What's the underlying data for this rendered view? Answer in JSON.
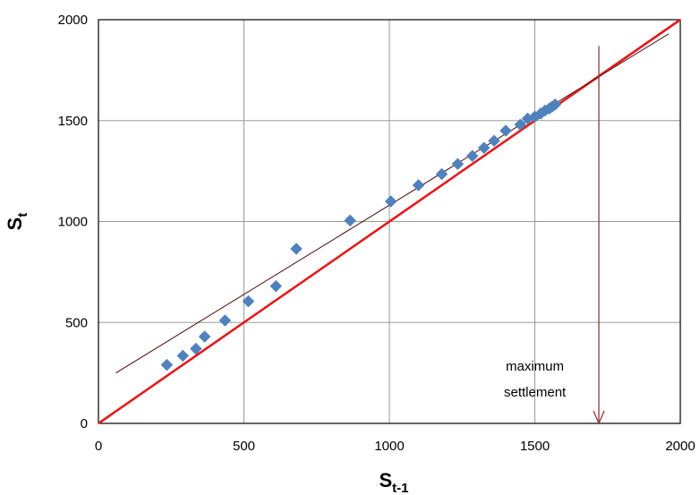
{
  "chart_data": {
    "type": "scatter",
    "xlabel": {
      "main": "S",
      "sub": "t-1"
    },
    "ylabel": {
      "main": "S",
      "sub": "t"
    },
    "xlim": [
      0,
      2000
    ],
    "ylim": [
      0,
      2000
    ],
    "x_ticks": [
      "0",
      "500",
      "1000",
      "1500",
      "2000"
    ],
    "y_ticks": [
      "0",
      "500",
      "1000",
      "1500",
      "2000"
    ],
    "grid": true,
    "legend": "none",
    "series": [
      {
        "type": "scatter",
        "marker": "diamond",
        "color": "#4f81bd",
        "points": [
          [
            235,
            290
          ],
          [
            290,
            335
          ],
          [
            335,
            370
          ],
          [
            365,
            430
          ],
          [
            435,
            510
          ],
          [
            515,
            605
          ],
          [
            610,
            680
          ],
          [
            680,
            865
          ],
          [
            865,
            1005
          ],
          [
            1005,
            1100
          ],
          [
            1100,
            1180
          ],
          [
            1180,
            1235
          ],
          [
            1235,
            1285
          ],
          [
            1285,
            1325
          ],
          [
            1325,
            1365
          ],
          [
            1360,
            1400
          ],
          [
            1400,
            1450
          ],
          [
            1450,
            1480
          ],
          [
            1475,
            1510
          ],
          [
            1500,
            1520
          ],
          [
            1520,
            1535
          ],
          [
            1535,
            1550
          ],
          [
            1550,
            1560
          ],
          [
            1560,
            1570
          ],
          [
            1570,
            1580
          ]
        ]
      },
      {
        "type": "line",
        "color": "#e31a1c",
        "points": [
          [
            0,
            0
          ],
          [
            2000,
            2000
          ]
        ]
      },
      {
        "type": "line",
        "color": "#5a1a1a",
        "points": [
          [
            60,
            250
          ],
          [
            1960,
            1930
          ]
        ]
      }
    ],
    "annotation": {
      "text_lines": [
        "maximum",
        "settlement"
      ],
      "arrow_x": 1720,
      "arrow_from_y": 1870,
      "arrow_to_y": 0,
      "color": "#8b3a3a"
    }
  }
}
